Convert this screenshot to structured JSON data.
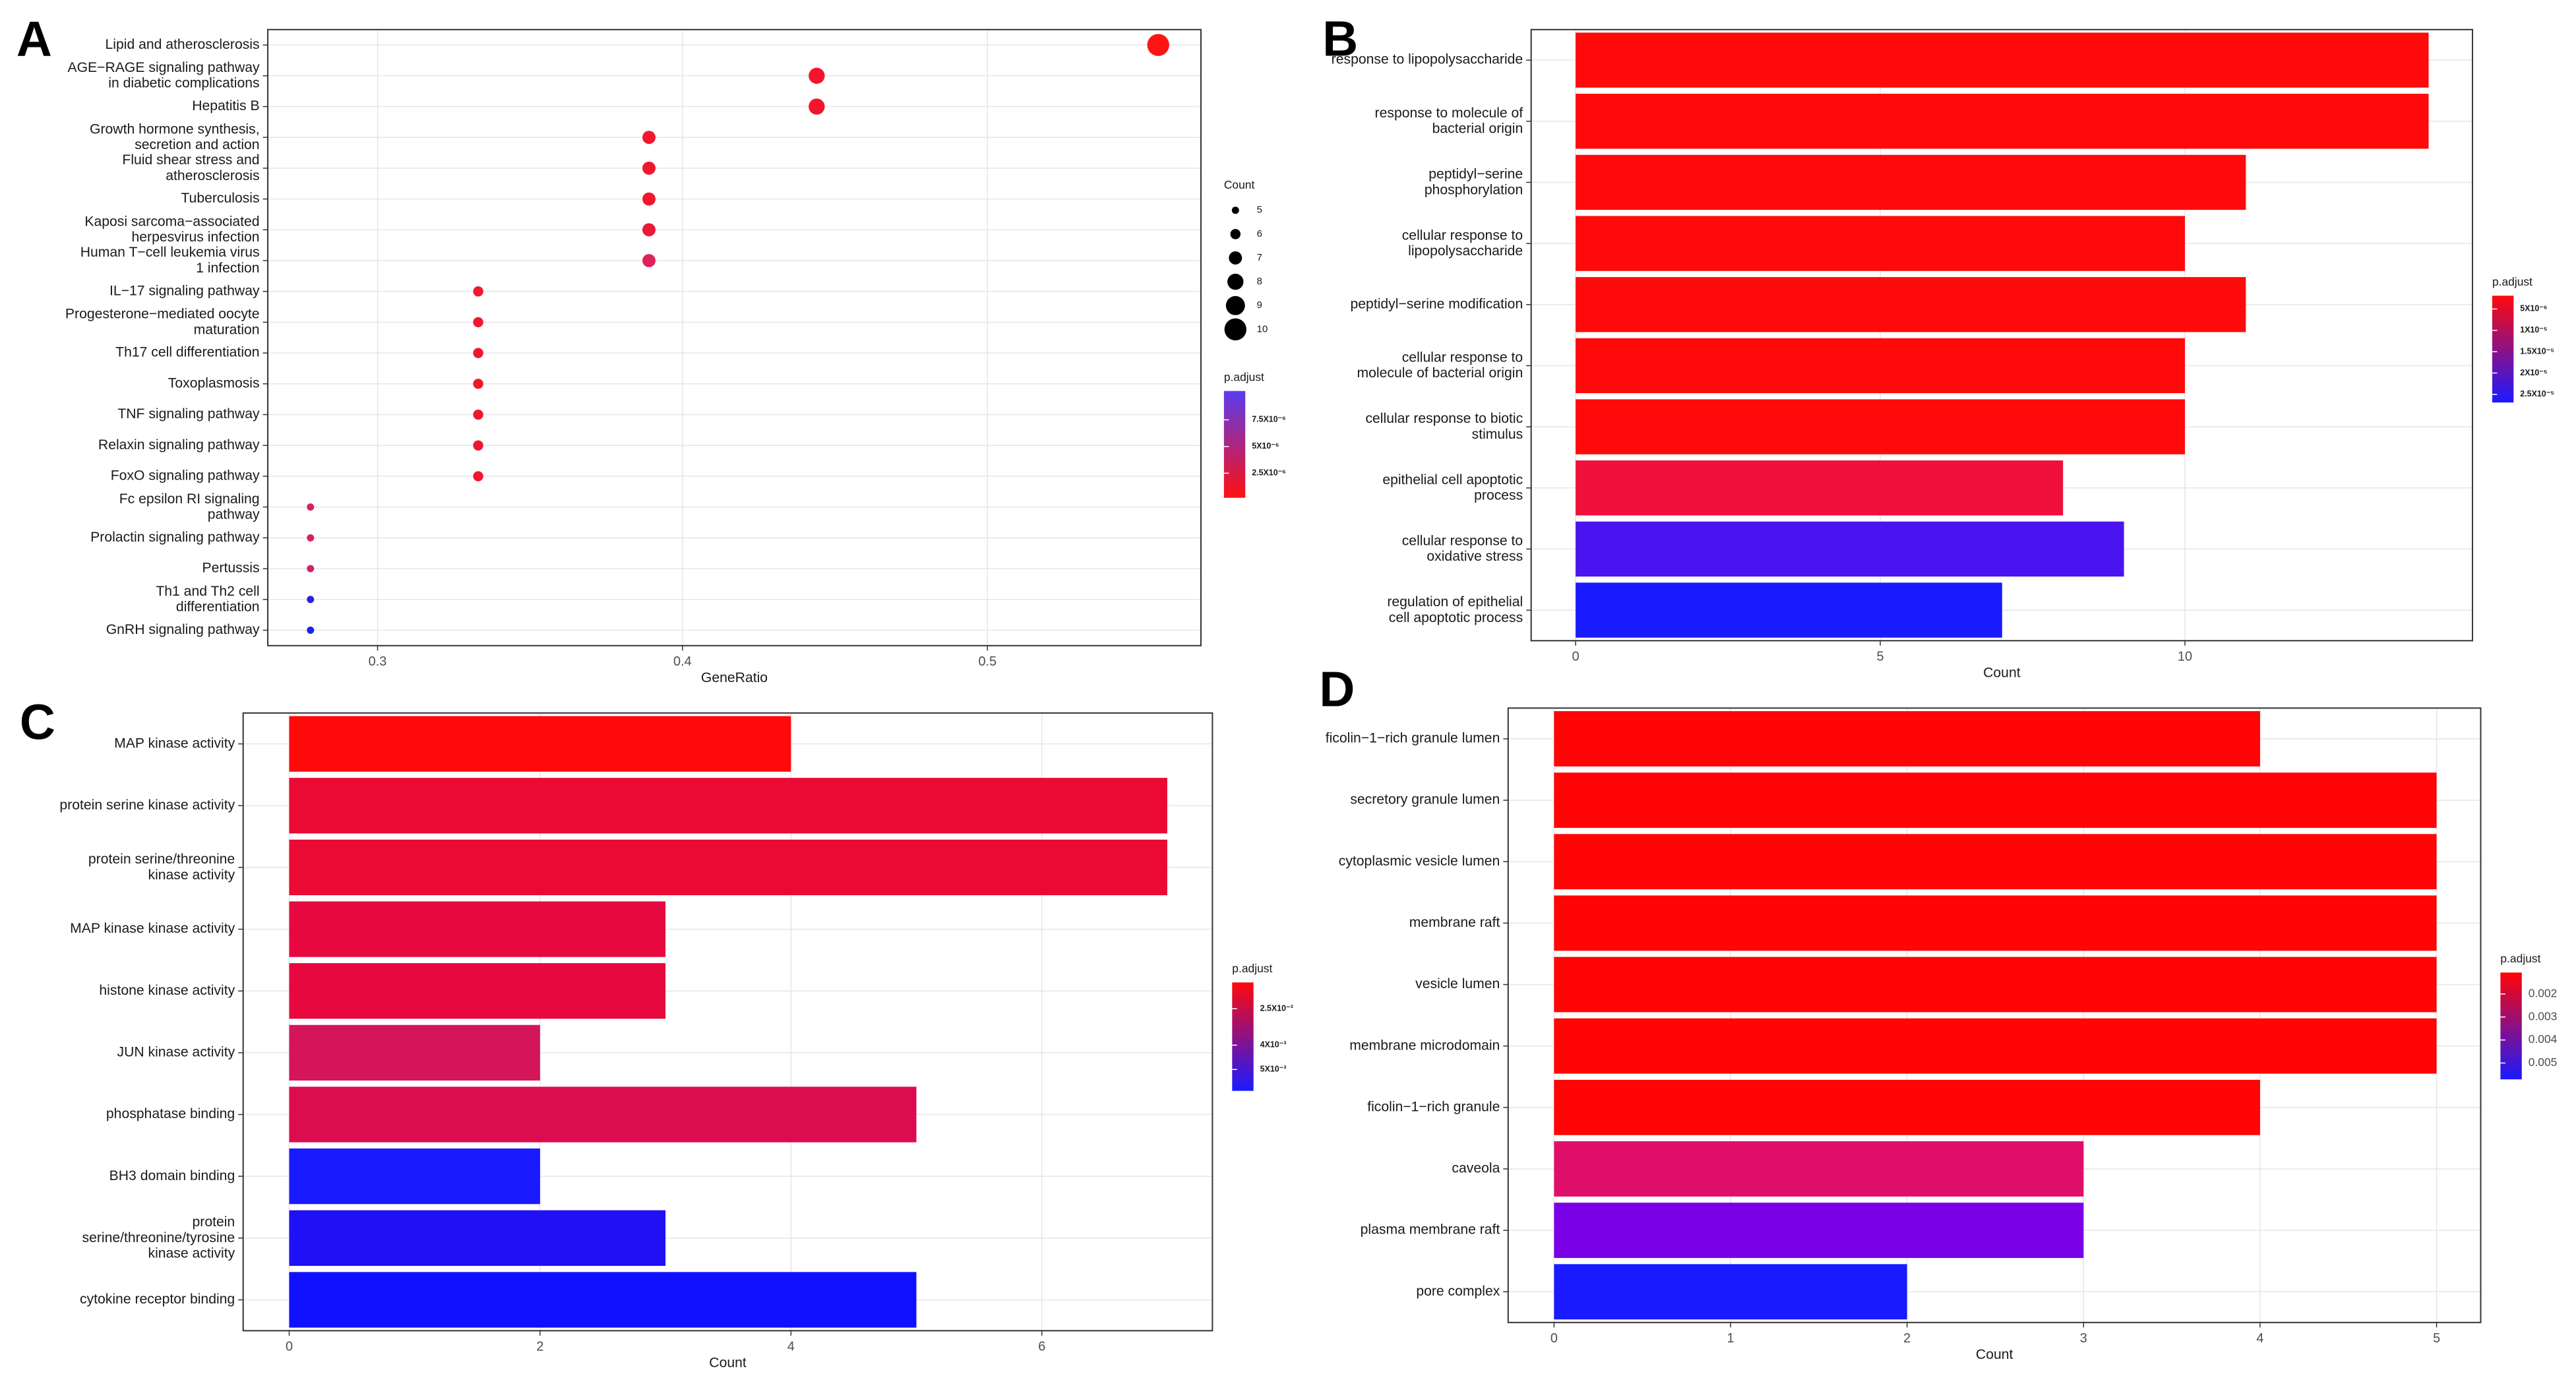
{
  "chart_data": [
    {
      "panel": "A",
      "type": "dot",
      "xlabel": "GeneRatio",
      "categories": [
        "Lipid and atherosclerosis",
        "AGE−RAGE signaling pathway\nin diabetic complications",
        "Hepatitis B",
        "Growth hormone synthesis,\nsecretion and action",
        "Fluid shear stress and\natherosclerosis",
        "Tuberculosis",
        "Kaposi sarcoma−associated\nherpesvirus infection",
        "Human T−cell leukemia virus\n1 infection",
        "IL−17 signaling pathway",
        "Progesterone−mediated oocyte\nmaturation",
        "Th17 cell differentiation",
        "Toxoplasmosis",
        "TNF signaling pathway",
        "Relaxin signaling pathway",
        "FoxO signaling pathway",
        "Fc epsilon RI signaling\npathway",
        "Prolactin signaling pathway",
        "Pertussis",
        "Th1 and Th2 cell\ndifferentiation",
        "GnRH signaling pathway"
      ],
      "values": [
        0.556,
        0.444,
        0.444,
        0.389,
        0.389,
        0.389,
        0.389,
        0.389,
        0.333,
        0.333,
        0.333,
        0.333,
        0.333,
        0.333,
        0.333,
        0.278,
        0.278,
        0.278,
        0.278,
        0.278
      ],
      "sizes": [
        10,
        8,
        8,
        7,
        7,
        7,
        7,
        7,
        6,
        6,
        6,
        6,
        6,
        6,
        6,
        5,
        5,
        5,
        5,
        5
      ],
      "colors": [
        "#ff1414",
        "#f5142c",
        "#f5142c",
        "#f2162e",
        "#f2162e",
        "#f2162e",
        "#ee1838",
        "#e0225a",
        "#f0182e",
        "#f0182e",
        "#f0182e",
        "#f0182e",
        "#f0182e",
        "#f0182e",
        "#f0182e",
        "#dc1e60",
        "#dc1e60",
        "#d42068",
        "#2a20e6",
        "#1a24e8"
      ],
      "xlim": [
        0.264,
        0.57
      ],
      "xticks": [
        0.3,
        0.4,
        0.5
      ],
      "size_legend": {
        "title": "Count",
        "values": [
          5,
          6,
          7,
          8,
          9,
          10
        ]
      },
      "colorbar": {
        "title": "p.adjust",
        "lim": [
          1.02e-05,
          2e-07
        ],
        "colors": [
          "#5a3cf0",
          "#ff1010"
        ],
        "ticks": [
          {
            "value": 7.5e-06,
            "label": "7.5X10⁻⁶"
          },
          {
            "value": 5e-06,
            "label": "5X10⁻⁶"
          },
          {
            "value": 2.5e-06,
            "label": "2.5X10⁻⁶"
          }
        ]
      }
    },
    {
      "panel": "B",
      "type": "bar",
      "xlabel": "Count",
      "categories": [
        "response to lipopolysaccharide",
        "response to molecule of\nbacterial origin",
        "peptidyl−serine\nphosphorylation",
        "cellular response to\nlipopolysaccharide",
        "peptidyl−serine modification",
        "cellular response to\nmolecule of bacterial origin",
        "cellular response to biotic\nstimulus",
        "epithelial cell apoptotic\nprocess",
        "cellular response to\noxidative stress",
        "regulation of epithelial\ncell apoptotic process"
      ],
      "values": [
        14,
        14,
        11,
        10,
        11,
        10,
        10,
        8,
        9,
        7
      ],
      "colors": [
        "#ff0a0a",
        "#ff0a0a",
        "#ff0a0a",
        "#ff0a0a",
        "#ff0a0a",
        "#ff0a0a",
        "#ff0a0a",
        "#f0103c",
        "#4a14f0",
        "#1a1aff"
      ],
      "xlim": [
        -0.73,
        14.72
      ],
      "xticks": [
        0,
        5,
        10
      ],
      "colorbar": {
        "title": "p.adjust",
        "lim": [
          1.9e-06,
          2.69e-05
        ],
        "colors": [
          "#ff0a0a",
          "#1a1aff"
        ],
        "ticks": [
          {
            "value": 5e-06,
            "label": "5X10⁻⁶"
          },
          {
            "value": 1e-05,
            "label": "1X10⁻⁵"
          },
          {
            "value": 1.5e-05,
            "label": "1.5X10⁻⁵"
          },
          {
            "value": 2e-05,
            "label": "2X10⁻⁵"
          },
          {
            "value": 2.5e-05,
            "label": "2.5X10⁻⁵"
          }
        ]
      }
    },
    {
      "panel": "C",
      "type": "bar",
      "xlabel": "Count",
      "categories": [
        "MAP kinase activity",
        "protein serine kinase activity",
        "protein serine/threonine\nkinase activity",
        "MAP kinase kinase activity",
        "histone kinase activity",
        "JUN kinase activity",
        "phosphatase binding",
        "BH3 domain binding",
        "protein\nserine/threonine/tyrosine\nkinase activity",
        "cytokine receptor binding"
      ],
      "values": [
        4,
        7,
        7,
        3,
        3,
        2,
        5,
        2,
        3,
        5
      ],
      "colors": [
        "#ff0a0a",
        "#ea0a34",
        "#ea0a34",
        "#e6083e",
        "#e6083e",
        "#d4155a",
        "#dc0c50",
        "#1a1aff",
        "#2010f5",
        "#1010ff"
      ],
      "xlim": [
        -0.367,
        7.36
      ],
      "xticks": [
        0,
        2,
        4,
        6
      ],
      "colorbar": {
        "title": "p.adjust",
        "lim": [
          0.00142,
          0.00588
        ],
        "colors": [
          "#ff0a0a",
          "#1a1aff"
        ],
        "ticks": [
          {
            "value": 0.0025,
            "label": "2.5X10⁻³"
          },
          {
            "value": 0.004,
            "label": "4X10⁻³"
          },
          {
            "value": 0.005,
            "label": "5X10⁻³"
          }
        ]
      }
    },
    {
      "panel": "D",
      "type": "bar",
      "xlabel": "Count",
      "categories": [
        "ficolin−1−rich granule lumen",
        "secretory granule lumen",
        "cytoplasmic vesicle lumen",
        "membrane raft",
        "vesicle lumen",
        "membrane microdomain",
        "ficolin−1−rich granule",
        "caveola",
        "plasma membrane raft",
        "pore complex"
      ],
      "values": [
        4,
        5,
        5,
        5,
        5,
        5,
        4,
        3,
        3,
        2
      ],
      "colors": [
        "#ff0505",
        "#ff0505",
        "#ff0505",
        "#ff0505",
        "#ff0505",
        "#ff0505",
        "#ff0505",
        "#e0106a",
        "#7a00e6",
        "#1a1aff"
      ],
      "xlim": [
        -0.26,
        5.25
      ],
      "xticks": [
        0,
        1,
        2,
        3,
        4,
        5
      ],
      "colorbar": {
        "title": "p.adjust",
        "lim": [
          0.00107,
          0.00571
        ],
        "colors": [
          "#ff0505",
          "#1a1aff"
        ],
        "ticks": [
          0.002,
          0.003,
          0.004,
          0.005
        ]
      }
    }
  ]
}
